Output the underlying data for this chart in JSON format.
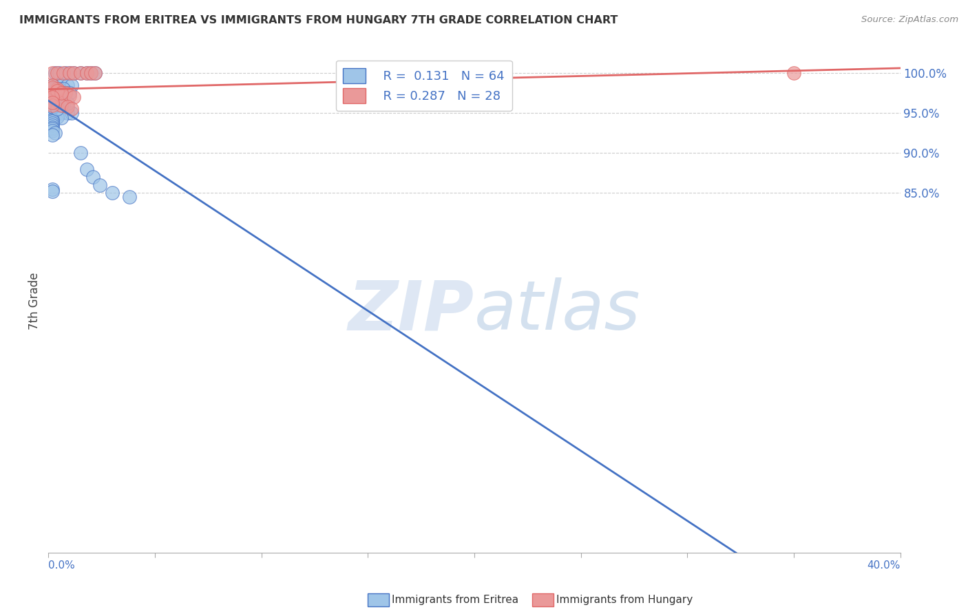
{
  "title": "IMMIGRANTS FROM ERITREA VS IMMIGRANTS FROM HUNGARY 7TH GRADE CORRELATION CHART",
  "source": "Source: ZipAtlas.com",
  "ylabel": "7th Grade",
  "legend_label_blue": "Immigrants from Eritrea",
  "legend_label_pink": "Immigrants from Hungary",
  "R_blue": 0.131,
  "N_blue": 64,
  "R_pink": 0.287,
  "N_pink": 28,
  "color_blue": "#9fc5e8",
  "color_pink": "#ea9999",
  "color_blue_line": "#4472c4",
  "color_pink_line": "#e06666",
  "color_blue_text": "#4472c4",
  "color_right_tick": "#4472c4",
  "scatter_blue_x": [
    0.3,
    0.5,
    0.8,
    1.0,
    1.2,
    1.5,
    1.8,
    2.0,
    2.2,
    0.4,
    0.6,
    0.9,
    1.1,
    0.2,
    0.3,
    0.5,
    0.7,
    0.8,
    1.0,
    0.2,
    0.3,
    0.3,
    0.4,
    0.5,
    0.7,
    0.2,
    0.2,
    0.3,
    0.4,
    0.2,
    0.2,
    0.4,
    0.6,
    0.9,
    1.1,
    0.2,
    0.4,
    0.6,
    0.2,
    0.2,
    0.2,
    0.2,
    0.2,
    0.2,
    0.2,
    0.3,
    0.2,
    0.2,
    0.4,
    0.5,
    0.6,
    0.5,
    0.7,
    0.9,
    0.2,
    0.4,
    1.5,
    1.8,
    2.1,
    2.4,
    3.0,
    3.8,
    0.2,
    0.2
  ],
  "scatter_blue_y": [
    100.0,
    100.0,
    100.0,
    100.0,
    100.0,
    100.0,
    100.0,
    100.0,
    100.0,
    98.5,
    98.5,
    98.5,
    98.5,
    98.5,
    98.0,
    98.0,
    98.0,
    97.5,
    97.5,
    97.0,
    96.5,
    96.5,
    96.3,
    96.0,
    96.0,
    95.8,
    95.5,
    95.5,
    95.3,
    95.2,
    95.0,
    95.0,
    95.0,
    95.0,
    95.0,
    94.8,
    94.5,
    94.4,
    94.2,
    94.0,
    93.7,
    93.5,
    93.2,
    93.0,
    92.8,
    92.5,
    92.3,
    98.0,
    97.5,
    97.2,
    97.0,
    96.5,
    96.0,
    96.2,
    95.8,
    95.5,
    90.0,
    88.0,
    87.0,
    86.0,
    85.0,
    84.5,
    85.5,
    85.2
  ],
  "scatter_pink_x": [
    0.3,
    0.5,
    0.8,
    1.0,
    1.2,
    0.2,
    0.4,
    0.7,
    1.0,
    1.2,
    1.5,
    1.8,
    2.0,
    2.2,
    0.2,
    0.4,
    0.6,
    0.9,
    1.1,
    0.2,
    0.4,
    0.2,
    0.4,
    0.6,
    0.2,
    0.2,
    0.2,
    35.0
  ],
  "scatter_pink_y": [
    97.5,
    97.8,
    97.5,
    97.2,
    97.0,
    100.0,
    100.0,
    100.0,
    100.0,
    100.0,
    100.0,
    100.0,
    100.0,
    100.0,
    97.0,
    96.5,
    96.0,
    95.8,
    95.5,
    98.5,
    98.0,
    98.2,
    97.8,
    97.5,
    97.0,
    96.0,
    96.3,
    100.0
  ],
  "xlim": [
    0.0,
    40.0
  ],
  "ylim": [
    40.0,
    103.0
  ],
  "ytick_positions": [
    100.0,
    95.0,
    90.0,
    85.0
  ],
  "xtick_positions": [
    0.0,
    5.0,
    10.0,
    15.0,
    20.0,
    25.0,
    30.0,
    35.0,
    40.0
  ],
  "background_color": "#ffffff",
  "grid_color": "#cccccc",
  "watermark_zip": "ZIP",
  "watermark_atlas": "atlas"
}
